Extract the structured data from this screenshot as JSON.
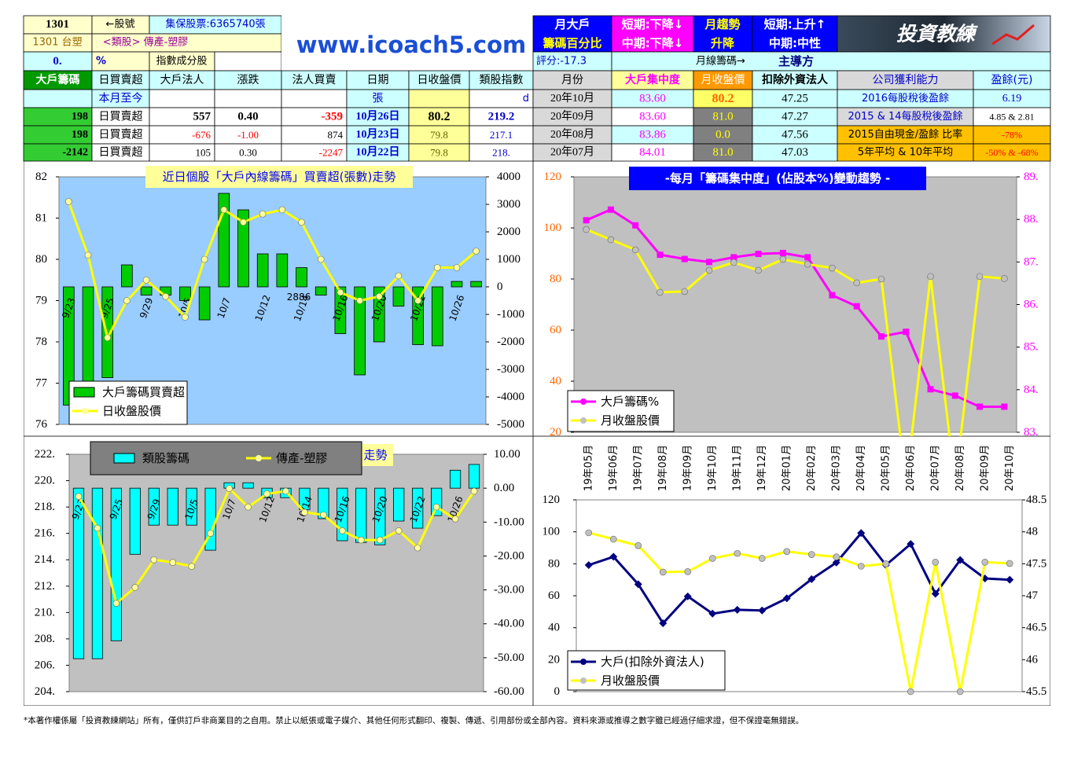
{
  "top": {
    "stock": "1301",
    "stock_label": "←股號",
    "custody": "集保股票:6365740張",
    "name": "1301 台塑",
    "sector": "<類股> 傳產-塑膠",
    "pct": "0.",
    "pct_unit": "%",
    "index_member": "指數成分股",
    "logo": "www.icoach5.com",
    "month_big": "月大戶",
    "chip_pct": "籌碼百分比",
    "short1": "短期:下降↓",
    "mid1": "中期:下降↓",
    "trend": "月趨勢",
    "rise_fall": "升降",
    "short2": "短期:上升↑",
    "mid2": "中期:中性",
    "brand": "投資教練",
    "score": "評分:-17.3",
    "month_chip": "月線籌碼→",
    "leader": "主導方"
  },
  "table": {
    "header": [
      "大戶籌碼",
      "日買賣超",
      "大戶法人",
      "漲跌",
      "法人買賣",
      "日期",
      "日收盤價",
      "類股指數",
      "月份",
      "大戶集中度",
      "月收盤價",
      "扣除外資法人",
      "公司獲利能力",
      "盈餘(元)"
    ],
    "rows": [
      [
        null,
        "本月至今",
        null,
        null,
        null,
        "張",
        null,
        "d",
        "20年10月",
        "83.60",
        "80.2",
        "47.25",
        "2016每股稅後盈餘",
        "6.19"
      ],
      [
        "198",
        "日買賣超",
        "557",
        "0.40",
        "-359",
        "10月26日",
        "80.2",
        "219.2",
        "20年09月",
        "83.60",
        "81.0",
        "47.27",
        "2015 & 14每股稅後盈餘",
        "4.85 & 2.81"
      ],
      [
        "198",
        "日買賣超",
        "-676",
        "-1.00",
        "874",
        "10月23日",
        "79.8",
        "217.1",
        "20年08月",
        "83.86",
        "0.0",
        "47.56",
        "2015自由現金/盈餘 比率",
        "-78%"
      ],
      [
        "-2142",
        "日買賣超",
        "105",
        "0.30",
        "-2247",
        "10月22日",
        "79.8",
        "218.",
        "20年07月",
        "84.01",
        "81.0",
        "47.03",
        "5年平均 & 10年平均",
        "-50% & -68%"
      ]
    ]
  },
  "chart_data": [
    {
      "type": "bar",
      "title": "近日個股「大戶內線籌碼」買賣超(張數)走勢",
      "annotation": "2886",
      "categories": [
        "9/23",
        null,
        "9/25",
        null,
        "9/29",
        null,
        "10/5",
        null,
        "10/7",
        null,
        "10/12",
        null,
        "10/14",
        null,
        "10/16",
        null,
        "10/20",
        null,
        "10/22",
        null,
        "10/26",
        null
      ],
      "ylim": [
        76,
        82
      ],
      "yticks": [
        76,
        77,
        78,
        79,
        80,
        81,
        82
      ],
      "y2lim": [
        -5000,
        4000
      ],
      "y2ticks": [
        -5000,
        -4000,
        -3000,
        -2000,
        -1000,
        0,
        1000,
        2000,
        3000,
        4000
      ],
      "series": [
        {
          "name": "大戶籌碼買賣超",
          "color": "#00cc00",
          "axis": "y2",
          "values": [
            -4300,
            -3500,
            -3300,
            800,
            -300,
            -300,
            -500,
            -1200,
            3400,
            2800,
            1200,
            1200,
            700,
            -300,
            -1700,
            -3200,
            -2000,
            -700,
            -2100,
            -2142,
            198,
            198
          ]
        },
        {
          "name": "日收盤股價",
          "color": "#ffff00",
          "type": "line",
          "values": [
            81.4,
            80.1,
            78.1,
            79.0,
            79.5,
            79.1,
            78.6,
            80.0,
            81.2,
            80.9,
            81.1,
            81.2,
            80.9,
            80.0,
            79.2,
            79.0,
            79.1,
            79.6,
            79.0,
            79.8,
            79.8,
            80.2
          ]
        }
      ]
    },
    {
      "type": "line",
      "title": "-每月「籌碼集中度」(佔股本%)變動趨勢 -",
      "ylim": [
        20,
        120
      ],
      "yticks": [
        20,
        40,
        60,
        80,
        100,
        120
      ],
      "y2lim": [
        83,
        89
      ],
      "y2ticks": [
        {
          "value": 83,
          "label": "83."
        },
        {
          "value": 84,
          "label": "84."
        },
        {
          "value": 85,
          "label": "85."
        },
        {
          "value": 86,
          "label": "86."
        },
        {
          "value": 87,
          "label": "87."
        },
        {
          "value": 88,
          "label": "88."
        },
        {
          "value": 89,
          "label": "89."
        }
      ],
      "series": [
        {
          "name": "大戶籌碼%",
          "color": "#ff00ff",
          "axis": "y2",
          "values": [
            87.98,
            88.23,
            87.86,
            87.17,
            87.07,
            87.0,
            87.11,
            87.19,
            87.21,
            87.11,
            86.22,
            85.96,
            85.25,
            85.36,
            84.01,
            83.86,
            83.6,
            83.6
          ]
        },
        {
          "name": "月收盤股價",
          "color": "#ffff00",
          "values": [
            99.4,
            95.4,
            91.4,
            74.8,
            75.1,
            83.4,
            86.5,
            83.4,
            87.7,
            85.8,
            84.3,
            78.5,
            80.0,
            0,
            81.0,
            0,
            81.0,
            80.2
          ]
        }
      ]
    },
    {
      "type": "bar",
      "title": "走勢",
      "categories": [
        "9/23",
        null,
        "9/25",
        null,
        "9/29",
        null,
        "10/5",
        null,
        "10/7",
        null,
        "10/12",
        null,
        "10/14",
        null,
        "10/16",
        null,
        "10/20",
        null,
        "10/22",
        null,
        "10/26",
        null
      ],
      "ylim": [
        204,
        222
      ],
      "yticks": [
        {
          "value": 204,
          "label": "204."
        },
        {
          "value": 206,
          "label": "206."
        },
        {
          "value": 208,
          "label": "208."
        },
        {
          "value": 210,
          "label": "210."
        },
        {
          "value": 212,
          "label": "212."
        },
        {
          "value": 214,
          "label": "214."
        },
        {
          "value": 216,
          "label": "216."
        },
        {
          "value": 218,
          "label": "218."
        },
        {
          "value": 220,
          "label": "220."
        },
        {
          "value": 222,
          "label": "222."
        }
      ],
      "y2lim": [
        -60,
        10
      ],
      "y2ticks": [
        {
          "value": -60,
          "label": "-60.00"
        },
        {
          "value": -50,
          "label": "-50.00"
        },
        {
          "value": -40,
          "label": "-40.00"
        },
        {
          "value": -30,
          "label": "-30.00"
        },
        {
          "value": -20,
          "label": "-20.00"
        },
        {
          "value": -10,
          "label": "-10.00"
        },
        {
          "value": 0,
          "label": "0.00"
        },
        {
          "value": 10,
          "label": "10.00"
        }
      ],
      "series": [
        {
          "name": "類股籌碼",
          "color": "#00ffff",
          "axis": "y2",
          "values": [
            -50.3,
            -50.3,
            -45,
            -19.5,
            -10.9,
            -10.9,
            -10.9,
            -18.3,
            1.6,
            1.6,
            -2.8,
            -2.8,
            -6.3,
            -9,
            -15.5,
            -16,
            -16.7,
            -9.7,
            -11.8,
            -8.1,
            5.3,
            7
          ]
        },
        {
          "name": "傳產-塑膠",
          "color": "#ffff00",
          "type": "line",
          "values": [
            218.8,
            216.4,
            210.7,
            211.9,
            214.0,
            213.8,
            213.5,
            216.0,
            219.4,
            218.0,
            219.0,
            219.2,
            217.6,
            217.4,
            216.2,
            215.5,
            215.5,
            216.2,
            214.9,
            218.0,
            217.1,
            219.2
          ]
        }
      ]
    },
    {
      "type": "line",
      "categories": [
        "19年05月",
        "19年06月",
        "19年07月",
        "19年08月",
        "19年09月",
        "19年10月",
        "19年11月",
        "19年12月",
        "20年01月",
        "20年02月",
        "20年03月",
        "20年04月",
        "20年05月",
        "20年06月",
        "20年07月",
        "20年08月",
        "20年09月",
        "20年10月"
      ],
      "ylim": [
        0,
        120
      ],
      "yticks": [
        0,
        20,
        40,
        60,
        80,
        100,
        120
      ],
      "y2lim": [
        45.5,
        48.5
      ],
      "y2ticks": [
        45.5,
        46,
        46.5,
        47,
        47.5,
        48,
        48.5
      ],
      "series": [
        {
          "name": "大戶(扣除外資法人)",
          "color": "#000080",
          "axis": "y2",
          "values": [
            47.48,
            47.61,
            47.18,
            46.57,
            46.99,
            46.72,
            46.78,
            46.77,
            46.96,
            47.26,
            47.52,
            47.98,
            47.48,
            47.81,
            47.03,
            47.56,
            47.27,
            47.25
          ]
        },
        {
          "name": "月收盤股價",
          "color": "#ffff00",
          "values": [
            99.4,
            95.4,
            91.4,
            74.8,
            75.1,
            83.4,
            86.5,
            83.4,
            87.7,
            85.8,
            84.3,
            78.5,
            80.0,
            0,
            81.0,
            0,
            81.0,
            80.2
          ]
        }
      ]
    }
  ],
  "footer": "*本著作權係屬「投資教練網站」所有，僅供訂戶非商業目的之自用。禁止以紙張或電子媒介、其他任何形式翻印、複製、傳遞、引用部份或全部內容。資料來源或推導之數字雖已經過仔細求證，但不保證毫無錯誤。"
}
